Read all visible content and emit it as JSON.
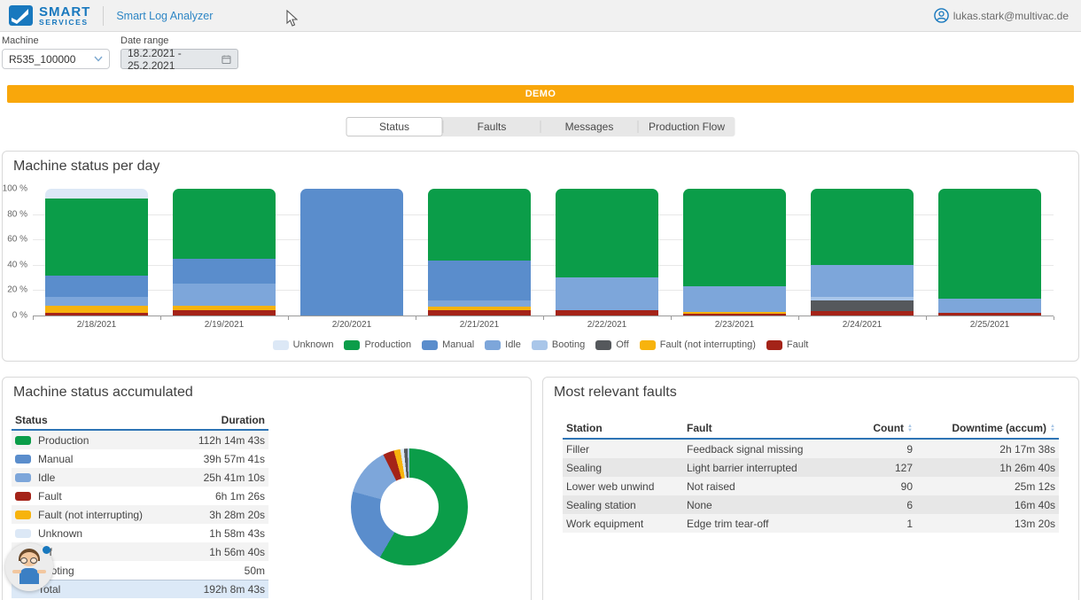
{
  "header": {
    "brand_line1": "SMART",
    "brand_line2": "SERVICES",
    "app_title": "Smart Log Analyzer",
    "user_email": "lukas.stark@multivac.de"
  },
  "filters": {
    "machine_label": "Machine",
    "machine_value": "R535_100000",
    "date_range_label": "Date range",
    "date_range_value": "18.2.2021 - 25.2.2021"
  },
  "demo_banner": "DEMO",
  "tabs": [
    {
      "label": "Status",
      "active": true
    },
    {
      "label": "Faults",
      "active": false
    },
    {
      "label": "Messages",
      "active": false
    },
    {
      "label": "Production Flow",
      "active": false
    }
  ],
  "status_colors": {
    "unknown": "#dce8f6",
    "production": "#0b9d49",
    "manual": "#5a8dcc",
    "idle": "#7da6da",
    "booting": "#a9c6e9",
    "off": "#55585c",
    "fault_ni": "#f7b30d",
    "fault": "#a42318"
  },
  "chart_data": [
    {
      "type": "bar",
      "stacked": true,
      "title": "Machine status per day",
      "categories": [
        "2/18/2021",
        "2/19/2021",
        "2/20/2021",
        "2/21/2021",
        "2/22/2021",
        "2/23/2021",
        "2/24/2021",
        "2/25/2021"
      ],
      "series": [
        {
          "name": "Fault",
          "key": "fault",
          "values": [
            2,
            4,
            0,
            4.5,
            4,
            1.5,
            3.5,
            2
          ]
        },
        {
          "name": "Fault (not interrupting)",
          "key": "fault_ni",
          "values": [
            6,
            4,
            0,
            2.5,
            0,
            1,
            0,
            0
          ]
        },
        {
          "name": "Off",
          "key": "off",
          "values": [
            0,
            0,
            0,
            0,
            0,
            0,
            8.5,
            0
          ]
        },
        {
          "name": "Booting",
          "key": "booting",
          "values": [
            0,
            0,
            0,
            0,
            0,
            0,
            2.5,
            0
          ]
        },
        {
          "name": "Idle",
          "key": "idle",
          "values": [
            7,
            17,
            0,
            5,
            26,
            20.5,
            25.5,
            11
          ]
        },
        {
          "name": "Manual",
          "key": "manual",
          "values": [
            16.5,
            19.5,
            100,
            31.5,
            0,
            0,
            0,
            0
          ]
        },
        {
          "name": "Production",
          "key": "production",
          "values": [
            60.5,
            55.5,
            0,
            56.5,
            70,
            77,
            60,
            87
          ]
        },
        {
          "name": "Unknown",
          "key": "unknown",
          "values": [
            8,
            0,
            0,
            0,
            0,
            0,
            0,
            0
          ]
        }
      ],
      "ylim": [
        0,
        100
      ],
      "yticks": [
        "0 %",
        "20 %",
        "40 %",
        "60 %",
        "80 %",
        "100 %"
      ],
      "legend": [
        {
          "label": "Unknown",
          "key": "unknown"
        },
        {
          "label": "Production",
          "key": "production"
        },
        {
          "label": "Manual",
          "key": "manual"
        },
        {
          "label": "Idle",
          "key": "idle"
        },
        {
          "label": "Booting",
          "key": "booting"
        },
        {
          "label": "Off",
          "key": "off"
        },
        {
          "label": "Fault (not interrupting)",
          "key": "fault_ni"
        },
        {
          "label": "Fault",
          "key": "fault"
        }
      ],
      "legend_position": "bottom"
    },
    {
      "type": "pie",
      "subtype": "donut",
      "labels": [
        "Production",
        "Manual",
        "Idle",
        "Fault",
        "Fault (not interrupting)",
        "Unknown",
        "Off",
        "Booting"
      ],
      "keys": [
        "production",
        "manual",
        "idle",
        "fault",
        "fault_ni",
        "unknown",
        "off",
        "booting"
      ],
      "values": [
        58.4,
        20.8,
        13.4,
        3.1,
        1.8,
        1.0,
        1.0,
        0.5
      ]
    }
  ],
  "accumulated": {
    "title": "Machine status accumulated",
    "col_status": "Status",
    "col_duration": "Duration",
    "rows": [
      {
        "key": "production",
        "label": "Production",
        "duration": "112h 14m 43s"
      },
      {
        "key": "manual",
        "label": "Manual",
        "duration": "39h 57m 41s"
      },
      {
        "key": "idle",
        "label": "Idle",
        "duration": "25h 41m 10s"
      },
      {
        "key": "fault",
        "label": "Fault",
        "duration": "6h 1m 26s"
      },
      {
        "key": "fault_ni",
        "label": "Fault (not interrupting)",
        "duration": "3h 28m 20s"
      },
      {
        "key": "unknown",
        "label": "Unknown",
        "duration": "1h 58m 43s"
      },
      {
        "key": "off",
        "label": "Off",
        "duration": "1h 56m 40s"
      },
      {
        "key": "booting",
        "label": "Booting",
        "duration": "50m"
      }
    ],
    "total": {
      "label": "Total",
      "duration": "192h 8m 43s"
    }
  },
  "faults": {
    "title": "Most relevant faults",
    "columns": [
      "Station",
      "Fault",
      "Count",
      "Downtime (accum)"
    ],
    "sortable_columns": [
      "Count",
      "Downtime (accum)"
    ],
    "rows": [
      {
        "station": "Filler",
        "fault": "Feedback signal missing",
        "count": "9",
        "downtime": "2h 17m 38s"
      },
      {
        "station": "Sealing",
        "fault": "Light barrier interrupted",
        "count": "127",
        "downtime": "1h 26m 40s"
      },
      {
        "station": "Lower web unwind",
        "fault": "Not raised",
        "count": "90",
        "downtime": "25m 12s"
      },
      {
        "station": "Sealing station",
        "fault": "None",
        "count": "6",
        "downtime": "16m 40s"
      },
      {
        "station": "Work equipment",
        "fault": "Edge trim tear-off",
        "count": "1",
        "downtime": "13m 20s"
      }
    ]
  }
}
